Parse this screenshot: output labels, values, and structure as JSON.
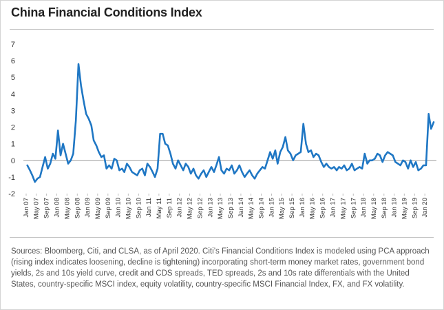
{
  "chart_data": {
    "type": "line",
    "title": "China Financial Conditions Index",
    "xlabel": "",
    "ylabel": "",
    "ylim": [
      -2,
      7
    ],
    "yticks": [
      "7",
      "6",
      "5",
      "4",
      "3",
      "2",
      "1",
      "0",
      "-1",
      "-2"
    ],
    "x_ticks": [
      "Jan 07",
      "May 07",
      "Sep 07",
      "Jan 08",
      "May 08",
      "Sep 08",
      "Jan 09",
      "May 09",
      "Sep 09",
      "Jan 10",
      "May 10",
      "Sep 10",
      "Jan 11",
      "May 11",
      "Sep 11",
      "Jan 12",
      "May 12",
      "Sep 12",
      "Jan 13",
      "May 13",
      "Sep 13",
      "Jan 14",
      "May 14",
      "Sep 14",
      "Jan 15",
      "May 15",
      "Sep 15",
      "Jan 16",
      "May 16",
      "Sep 16",
      "Jan 17",
      "May 17",
      "Sep 17",
      "Jan 18",
      "May 18",
      "Sep 18",
      "Jan 19",
      "May 19",
      "Sep 19",
      "Jan 20"
    ],
    "grid": false,
    "color": "#1f77c4",
    "series": [
      {
        "name": "",
        "x": [
          "2007-01",
          "2007-02",
          "2007-03",
          "2007-04",
          "2007-05",
          "2007-06",
          "2007-07",
          "2007-08",
          "2007-09",
          "2007-10",
          "2007-11",
          "2007-12",
          "2008-01",
          "2008-02",
          "2008-03",
          "2008-04",
          "2008-05",
          "2008-06",
          "2008-07",
          "2008-08",
          "2008-09",
          "2008-10",
          "2008-11",
          "2008-12",
          "2009-01",
          "2009-02",
          "2009-03",
          "2009-04",
          "2009-05",
          "2009-06",
          "2009-07",
          "2009-08",
          "2009-09",
          "2009-10",
          "2009-11",
          "2009-12",
          "2010-01",
          "2010-02",
          "2010-03",
          "2010-04",
          "2010-05",
          "2010-06",
          "2010-07",
          "2010-08",
          "2010-09",
          "2010-10",
          "2010-11",
          "2010-12",
          "2011-01",
          "2011-02",
          "2011-03",
          "2011-04",
          "2011-05",
          "2011-06",
          "2011-07",
          "2011-08",
          "2011-09",
          "2011-10",
          "2011-11",
          "2011-12",
          "2012-01",
          "2012-02",
          "2012-03",
          "2012-04",
          "2012-05",
          "2012-06",
          "2012-07",
          "2012-08",
          "2012-09",
          "2012-10",
          "2012-11",
          "2012-12",
          "2013-01",
          "2013-02",
          "2013-03",
          "2013-04",
          "2013-05",
          "2013-06",
          "2013-07",
          "2013-08",
          "2013-09",
          "2013-10",
          "2013-11",
          "2013-12",
          "2014-01",
          "2014-02",
          "2014-03",
          "2014-04",
          "2014-05",
          "2014-06",
          "2014-07",
          "2014-08",
          "2014-09",
          "2014-10",
          "2014-11",
          "2014-12",
          "2015-01",
          "2015-02",
          "2015-03",
          "2015-04",
          "2015-05",
          "2015-06",
          "2015-07",
          "2015-08",
          "2015-09",
          "2015-10",
          "2015-11",
          "2015-12",
          "2016-01",
          "2016-02",
          "2016-03",
          "2016-04",
          "2016-05",
          "2016-06",
          "2016-07",
          "2016-08",
          "2016-09",
          "2016-10",
          "2016-11",
          "2016-12",
          "2017-01",
          "2017-02",
          "2017-03",
          "2017-04",
          "2017-05",
          "2017-06",
          "2017-07",
          "2017-08",
          "2017-09",
          "2017-10",
          "2017-11",
          "2017-12",
          "2018-01",
          "2018-02",
          "2018-03",
          "2018-04",
          "2018-05",
          "2018-06",
          "2018-07",
          "2018-08",
          "2018-09",
          "2018-10",
          "2018-11",
          "2018-12",
          "2019-01",
          "2019-02",
          "2019-03",
          "2019-04",
          "2019-05",
          "2019-06",
          "2019-07",
          "2019-08",
          "2019-09",
          "2019-10",
          "2019-11",
          "2019-12",
          "2020-01",
          "2020-02",
          "2020-03",
          "2020-04"
        ],
        "values": [
          -0.3,
          -0.6,
          -0.9,
          -1.3,
          -1.1,
          -1.0,
          -0.4,
          0.2,
          -0.5,
          -0.2,
          0.4,
          0.1,
          1.8,
          0.3,
          1.0,
          0.4,
          -0.2,
          0.0,
          0.4,
          2.4,
          5.8,
          4.5,
          3.6,
          2.8,
          2.5,
          2.1,
          1.2,
          0.9,
          0.5,
          0.2,
          0.3,
          -0.5,
          -0.3,
          -0.5,
          0.1,
          0.0,
          -0.6,
          -0.5,
          -0.7,
          -0.2,
          -0.4,
          -0.7,
          -0.8,
          -0.9,
          -0.6,
          -0.5,
          -0.9,
          -0.2,
          -0.4,
          -0.7,
          -1.0,
          -0.5,
          1.6,
          1.6,
          1.0,
          0.9,
          0.4,
          -0.2,
          -0.5,
          0.0,
          -0.3,
          -0.6,
          -0.2,
          -0.4,
          -0.8,
          -0.5,
          -0.9,
          -1.1,
          -0.8,
          -0.6,
          -1.0,
          -0.7,
          -0.4,
          -0.7,
          -0.3,
          0.2,
          -0.6,
          -0.8,
          -0.5,
          -0.6,
          -0.3,
          -0.8,
          -0.6,
          -0.3,
          -0.7,
          -1.0,
          -0.8,
          -0.6,
          -0.9,
          -1.1,
          -0.8,
          -0.6,
          -0.4,
          -0.5,
          0.0,
          0.5,
          0.1,
          0.6,
          -0.2,
          0.5,
          0.8,
          1.4,
          0.6,
          0.4,
          0.0,
          0.3,
          0.4,
          0.5,
          2.2,
          1.0,
          0.5,
          0.6,
          0.2,
          0.4,
          0.3,
          -0.1,
          -0.4,
          -0.2,
          -0.4,
          -0.5,
          -0.4,
          -0.6,
          -0.4,
          -0.5,
          -0.3,
          -0.6,
          -0.5,
          -0.2,
          -0.6,
          -0.5,
          -0.4,
          -0.5,
          0.4,
          -0.2,
          0.0,
          0.0,
          0.1,
          0.4,
          0.3,
          -0.1,
          0.3,
          0.5,
          0.4,
          0.3,
          -0.1,
          -0.2,
          -0.3,
          0.0,
          -0.1,
          -0.5,
          0.0,
          -0.4,
          -0.1,
          -0.6,
          -0.5,
          -0.3,
          -0.3,
          2.8,
          1.9,
          2.3
        ]
      }
    ]
  },
  "source_note": "Sources: Bloomberg, Citi, and CLSA, as of April 2020. Citi’s Financial Conditions Index is modeled using PCA approach (rising index indicates loosening, decline is tightening) incorporating short-term money market rates, government bond yields, 2s and 10s yield curve, credit and CDS spreads, TED spreads, 2s and 10s rate differentials with the United States, country-specific MSCI index, equity volatility, country-specific MSCI Financial Index, FX, and FX volatility."
}
